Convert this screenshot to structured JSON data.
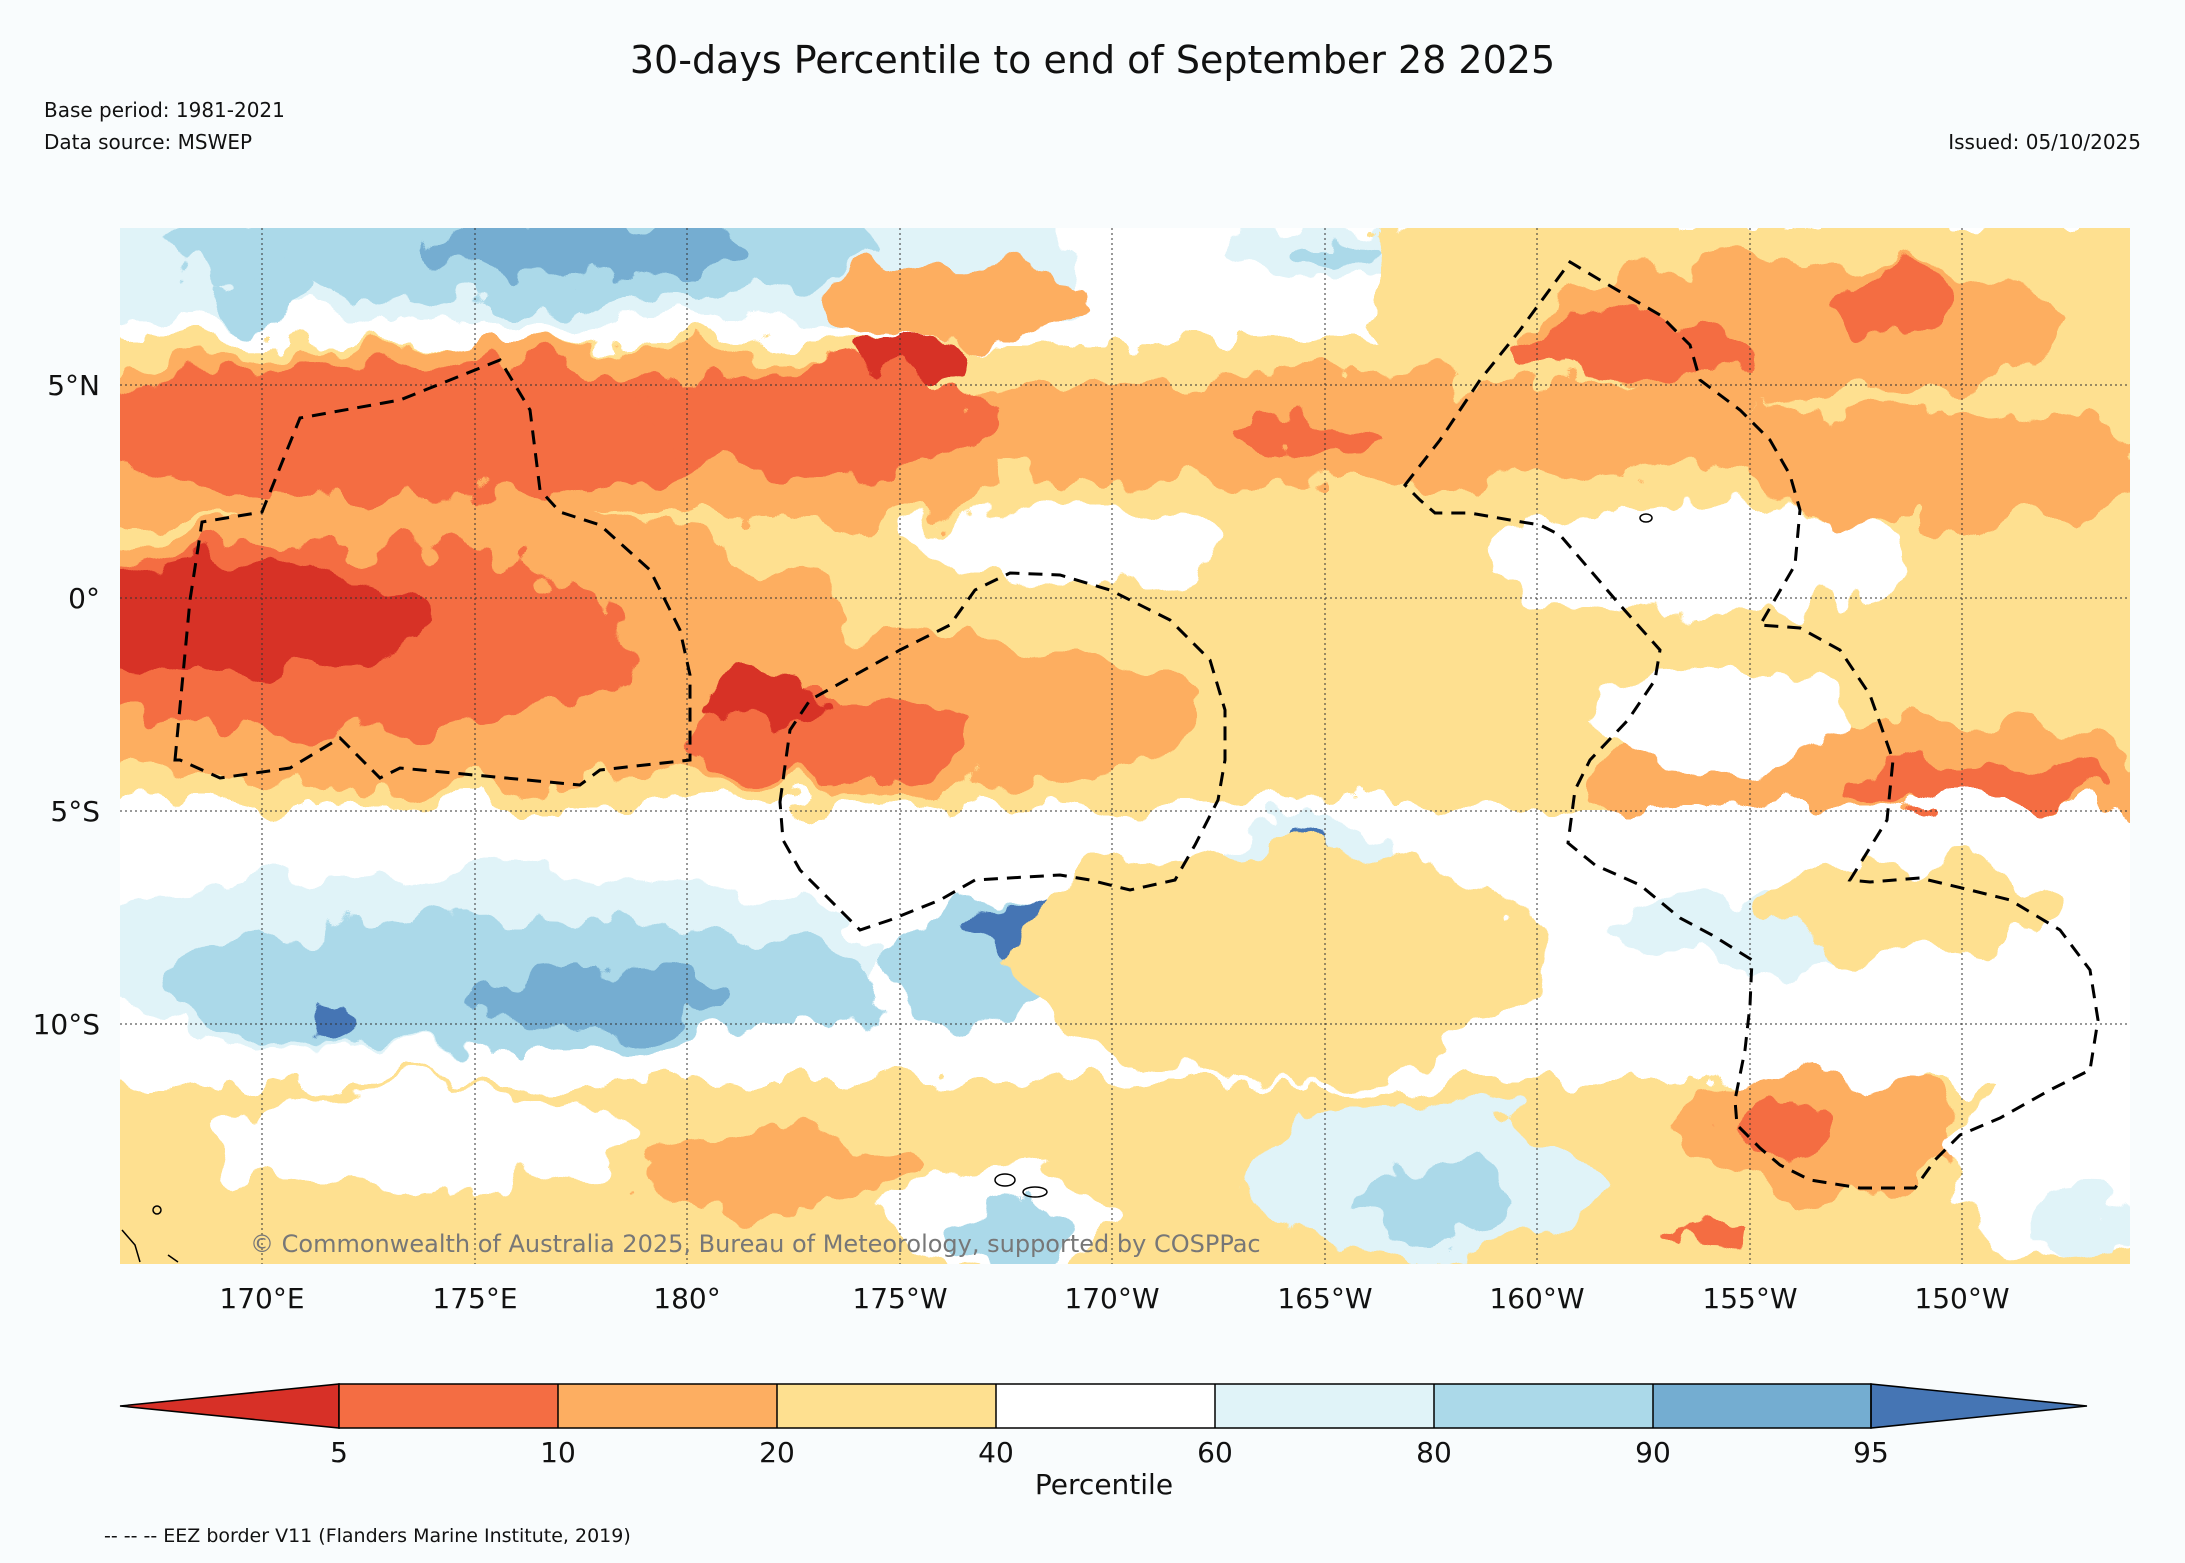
{
  "title": "30-days Percentile to end of September 28 2025",
  "base_period": "Base period: 1981-2021",
  "data_source": "Data source: MSWEP",
  "issued": "Issued: 05/10/2025",
  "map": {
    "lat_labels": [
      "5°N",
      "0°",
      "5°S",
      "10°S"
    ],
    "lon_labels": [
      "170°E",
      "175°E",
      "180°",
      "175°W",
      "170°W",
      "165°W",
      "160°W",
      "155°W",
      "150°W"
    ],
    "copyright": "© Commonwealth of Australia 2025, Bureau of Meteorology, supported by COSPPac",
    "colors": {
      "below5": "#d73027",
      "p5_10": "#f46d43",
      "p10_20": "#fdae61",
      "p20_40": "#fee090",
      "p40_60": "#ffffff",
      "p60_80": "#e0f3f8",
      "p80_90": "#abd9e9",
      "p90_95": "#74add1",
      "above95": "#4575b4"
    }
  },
  "colorbar": {
    "ticks": [
      "5",
      "10",
      "20",
      "40",
      "60",
      "80",
      "90",
      "95"
    ],
    "label": "Percentile",
    "colors": [
      "#d73027",
      "#f46d43",
      "#fdae61",
      "#fee090",
      "#ffffff",
      "#e0f3f8",
      "#abd9e9",
      "#74add1",
      "#4575b4"
    ]
  },
  "footnote": "-- -- -- EEZ border V11 (Flanders Marine Institute, 2019)"
}
